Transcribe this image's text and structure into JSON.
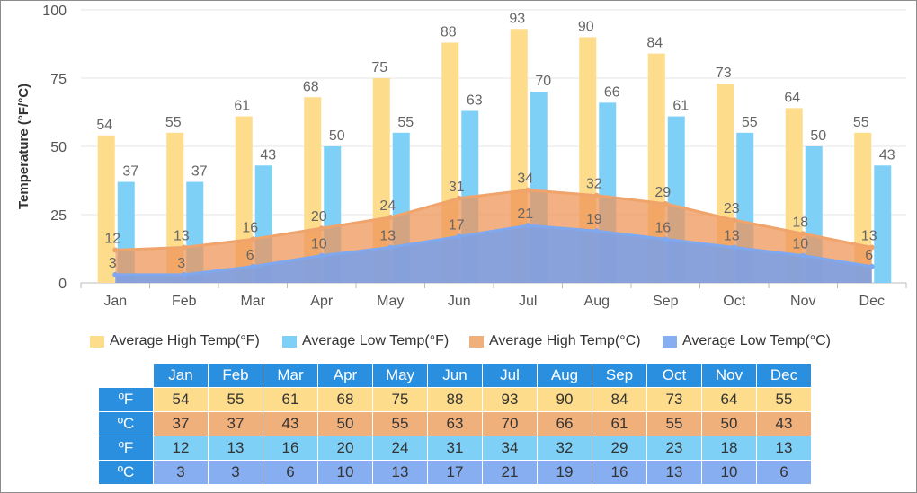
{
  "chart_data": {
    "type": "bar",
    "ylabel": "Temperature (°F/°C)",
    "ylim": [
      0,
      100
    ],
    "yticks": [
      0,
      25,
      50,
      75,
      100
    ],
    "grid": true,
    "legend_position": "bottom",
    "categories": [
      "Jan",
      "Feb",
      "Mar",
      "Apr",
      "May",
      "Jun",
      "Jul",
      "Aug",
      "Sep",
      "Oct",
      "Nov",
      "Dec"
    ],
    "series": [
      {
        "name": "Average High Temp(°F)",
        "type": "bar",
        "color": "#fddc8b",
        "values": [
          54,
          55,
          61,
          68,
          75,
          88,
          93,
          90,
          84,
          73,
          64,
          55
        ]
      },
      {
        "name": "Average Low Temp(°F)",
        "type": "bar",
        "color": "#7fd0f7",
        "values": [
          37,
          37,
          43,
          50,
          55,
          63,
          70,
          66,
          61,
          55,
          50,
          43
        ]
      },
      {
        "name": "Average High Temp(°C)",
        "type": "area",
        "color": "#f0a46c",
        "values": [
          12,
          13,
          16,
          20,
          24,
          31,
          34,
          32,
          29,
          23,
          18,
          13
        ]
      },
      {
        "name": "Average Low Temp(°C)",
        "type": "area",
        "color": "#7fa8ee",
        "values": [
          3,
          3,
          6,
          10,
          13,
          17,
          21,
          19,
          16,
          13,
          10,
          6
        ]
      }
    ]
  },
  "table": {
    "row_labels": [
      "ºF",
      "ºC",
      "ºF",
      "ºC"
    ],
    "row_colors": [
      "#fddc8b",
      "#f0b07c",
      "#7fd0f7",
      "#86aef0"
    ]
  }
}
